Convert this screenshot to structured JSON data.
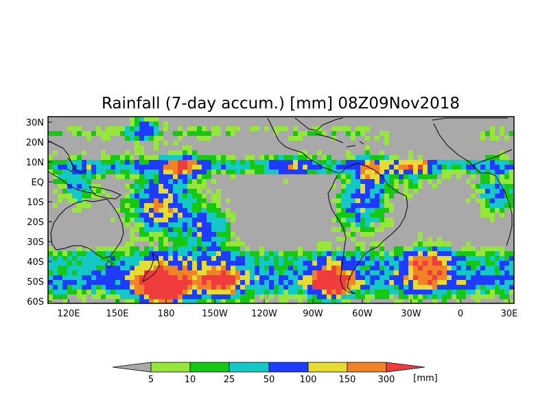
{
  "title": "Rainfall (7-day accum.) [mm] 08Z09Nov2018",
  "map": {
    "background_color": "#a9a9a9",
    "lat_labels": [
      "30N",
      "20N",
      "10N",
      "EQ",
      "10S",
      "20S",
      "30S",
      "40S",
      "50S",
      "60S"
    ],
    "lon_labels": [
      "120E",
      "150E",
      "180",
      "150W",
      "120W",
      "90W",
      "60W",
      "30W",
      "0",
      "30E"
    ]
  },
  "colorbar": {
    "unit_label": "[mm]",
    "thresholds": [
      "5",
      "10",
      "25",
      "50",
      "100",
      "150",
      "300"
    ],
    "colors": [
      "#a9a9a9",
      "#96e63c",
      "#14c814",
      "#14c8c8",
      "#1e3cff",
      "#e6dc32",
      "#f08228",
      "#f03c3c"
    ]
  }
}
